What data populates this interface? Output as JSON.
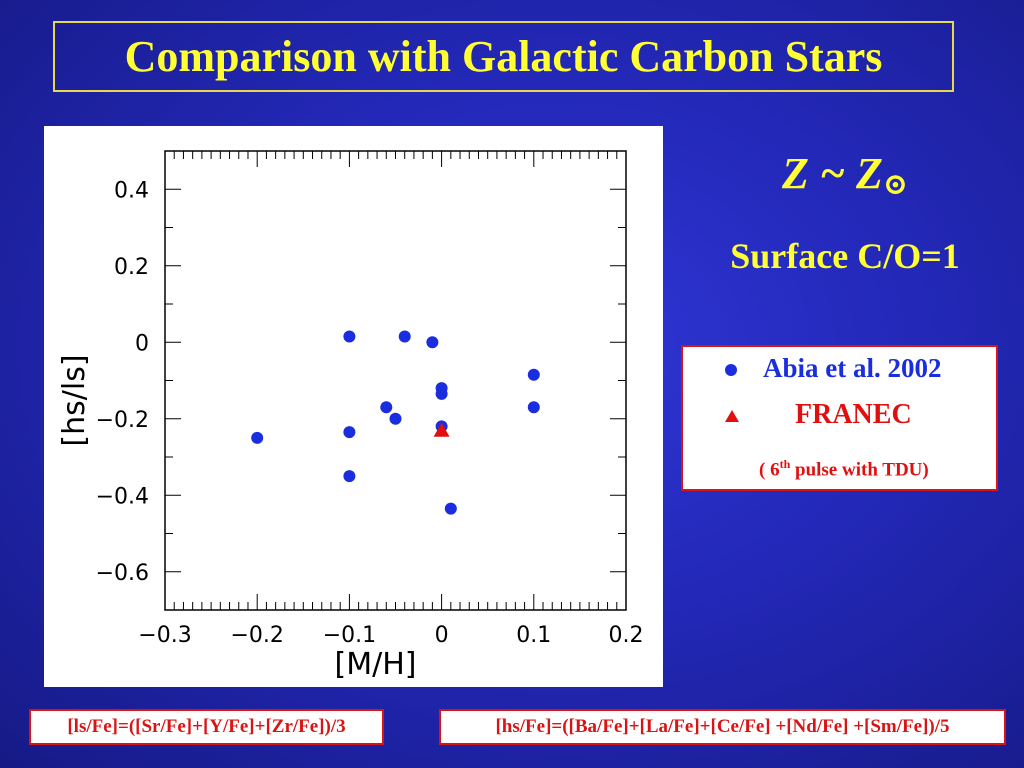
{
  "slide": {
    "title": "Comparison with Galactic Carbon Stars",
    "condition_main": "Z ~ Z",
    "condition_symbol": "⊙",
    "condition_sub": "Surface C/O=1",
    "formula_ls": "[ls/Fe]=([Sr/Fe]+[Y/Fe]+[Zr/Fe])/3",
    "formula_hs": "[hs/Fe]=([Ba/Fe]+[La/Fe]+[Ce/Fe] +[Nd/Fe] +[Sm/Fe])/5"
  },
  "legend": {
    "observed_label": "Abia et al. 2002",
    "model_label": "FRANEC",
    "model_note_prefix": "( 6",
    "model_note_sup": "th",
    "model_note_suffix": " pulse with TDU)"
  },
  "chart_data": {
    "type": "scatter",
    "xlabel": "[M/H]",
    "ylabel": "[hs/ls]",
    "xlim": [
      -0.3,
      0.2
    ],
    "ylim": [
      -0.7,
      0.5
    ],
    "xticks": [
      -0.3,
      -0.2,
      -0.1,
      0,
      0.1,
      0.2
    ],
    "xtick_labels": [
      "−0.3",
      "−0.2",
      "−0.1",
      "0",
      "0.1",
      "0.2"
    ],
    "yticks": [
      -0.6,
      -0.4,
      -0.2,
      0,
      0.2,
      0.4
    ],
    "ytick_labels": [
      "−0.6",
      "−0.4",
      "−0.2",
      "0",
      "0.2",
      "0.4"
    ],
    "series": [
      {
        "name": "Abia et al. 2002",
        "marker": "circle",
        "color": "#1a2ee0",
        "points": [
          [
            -0.2,
            -0.25
          ],
          [
            -0.1,
            0.015
          ],
          [
            -0.1,
            -0.235
          ],
          [
            -0.1,
            -0.35
          ],
          [
            -0.04,
            0.015
          ],
          [
            -0.01,
            0.0
          ],
          [
            0.0,
            -0.12
          ],
          [
            0.0,
            -0.135
          ],
          [
            -0.06,
            -0.17
          ],
          [
            -0.05,
            -0.2
          ],
          [
            0.0,
            -0.22
          ],
          [
            0.01,
            -0.435
          ],
          [
            0.1,
            -0.085
          ],
          [
            0.1,
            -0.17
          ]
        ]
      },
      {
        "name": "FRANEC",
        "marker": "triangle",
        "color": "#e01010",
        "points": [
          [
            0.0,
            -0.23
          ]
        ]
      }
    ]
  }
}
